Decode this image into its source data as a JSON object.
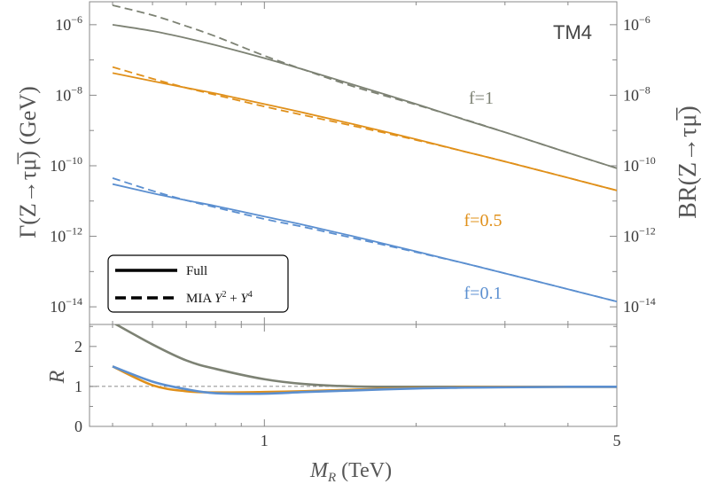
{
  "chart_data": {
    "type": "line",
    "panel_label": "TM4",
    "x": [
      0.5,
      0.6,
      0.7,
      0.8,
      1.0,
      1.2,
      1.5,
      2.0,
      2.5,
      3.0,
      4.0,
      5.0
    ],
    "xlabel_main": "M",
    "xlabel_sub": "R",
    "xlabel_unit": " (TeV)",
    "xscale": "log",
    "xlim": [
      0.45,
      5.0
    ],
    "x_ticks": [
      {
        "value": 1,
        "label": "1"
      },
      {
        "value": 5,
        "label": "5"
      }
    ],
    "top": {
      "ylabel": "Γ(Z→τμ̅) (GeV)",
      "ylabel_right": "BR(Z→τμ̅)",
      "yscale": "log",
      "ylim_log10": [
        -14.5,
        -5.35
      ],
      "y_ticks_left": [
        {
          "value": -6,
          "base": "10",
          "exp": "−6"
        },
        {
          "value": -8,
          "base": "10",
          "exp": "−8"
        },
        {
          "value": -10,
          "base": "10",
          "exp": "−10"
        },
        {
          "value": -12,
          "base": "10",
          "exp": "−12"
        },
        {
          "value": -14,
          "base": "10",
          "exp": "−14"
        }
      ],
      "y_ticks_right": [
        {
          "value": -6,
          "base": "10",
          "exp": "−6"
        },
        {
          "value": -8,
          "base": "10",
          "exp": "−8"
        },
        {
          "value": -10,
          "base": "10",
          "exp": "−10"
        },
        {
          "value": -12,
          "base": "10",
          "exp": "−12"
        },
        {
          "value": -14,
          "base": "10",
          "exp": "−14"
        }
      ],
      "series": [
        {
          "name": "f=1",
          "label": "f=1",
          "color": "#7d8274",
          "style": "solid",
          "log10_values": [
            -6.0,
            -6.18,
            -6.38,
            -6.58,
            -6.95,
            -7.28,
            -7.7,
            -8.25,
            -8.7,
            -9.05,
            -9.63,
            -10.07
          ]
        },
        {
          "name": "f=1 MIA",
          "color": "#7d8274",
          "style": "dashed",
          "log10_values": [
            -5.45,
            -5.73,
            -6.04,
            -6.33,
            -6.88,
            -7.28,
            -7.75,
            -8.27,
            -8.69,
            -9.05,
            -9.63,
            -10.07
          ]
        },
        {
          "name": "f=0.5",
          "label": "f=0.5",
          "color": "#e0901a",
          "style": "solid",
          "log10_values": [
            -7.37,
            -7.6,
            -7.79,
            -7.95,
            -8.25,
            -8.5,
            -8.82,
            -9.25,
            -9.6,
            -9.88,
            -10.34,
            -10.7
          ]
        },
        {
          "name": "f=0.5 MIA",
          "color": "#e0901a",
          "style": "dashed",
          "log10_values": [
            -7.2,
            -7.53,
            -7.79,
            -7.99,
            -8.32,
            -8.57,
            -8.87,
            -9.27,
            -9.6,
            -9.88,
            -10.34,
            -10.7
          ]
        },
        {
          "name": "f=0.1",
          "label": "f=0.1",
          "color": "#5b8fd0",
          "style": "solid",
          "log10_values": [
            -10.52,
            -10.78,
            -10.98,
            -11.14,
            -11.44,
            -11.68,
            -12.0,
            -12.43,
            -12.77,
            -13.05,
            -13.5,
            -13.85
          ]
        },
        {
          "name": "f=0.1 MIA",
          "color": "#5b8fd0",
          "style": "dashed",
          "log10_values": [
            -10.35,
            -10.71,
            -10.98,
            -11.18,
            -11.51,
            -11.74,
            -12.05,
            -12.45,
            -12.77,
            -13.05,
            -13.5,
            -13.85
          ]
        }
      ]
    },
    "bottom": {
      "ylabel": "R",
      "ylim": [
        0,
        2.55
      ],
      "y_ticks": [
        {
          "value": 0,
          "label": "0"
        },
        {
          "value": 1,
          "label": "1"
        },
        {
          "value": 2,
          "label": "2"
        }
      ],
      "reference_line": 1,
      "series": [
        {
          "name": "R f=1",
          "color": "#7d8274",
          "values": [
            2.6,
            2.05,
            1.65,
            1.44,
            1.18,
            1.06,
            1.0,
            0.99,
            0.99,
            0.99,
            0.99,
            0.99
          ]
        },
        {
          "name": "R f=0.5",
          "color": "#e0901a",
          "values": [
            1.5,
            1.03,
            0.88,
            0.85,
            0.86,
            0.88,
            0.92,
            0.96,
            0.98,
            0.99,
            0.99,
            0.99
          ]
        },
        {
          "name": "R f=0.1",
          "color": "#5b8fd0",
          "values": [
            1.5,
            1.12,
            0.93,
            0.83,
            0.82,
            0.86,
            0.9,
            0.95,
            0.97,
            0.98,
            0.99,
            0.99
          ]
        }
      ]
    },
    "legend": {
      "position": "bottom-left",
      "entries": [
        {
          "style": "solid",
          "label": "Full"
        },
        {
          "style": "dashed",
          "label_main": "MIA ",
          "y2_base": "Y",
          "y2_exp": "2",
          "plus": " + ",
          "y4_base": "Y",
          "y4_exp": "4"
        }
      ]
    }
  }
}
